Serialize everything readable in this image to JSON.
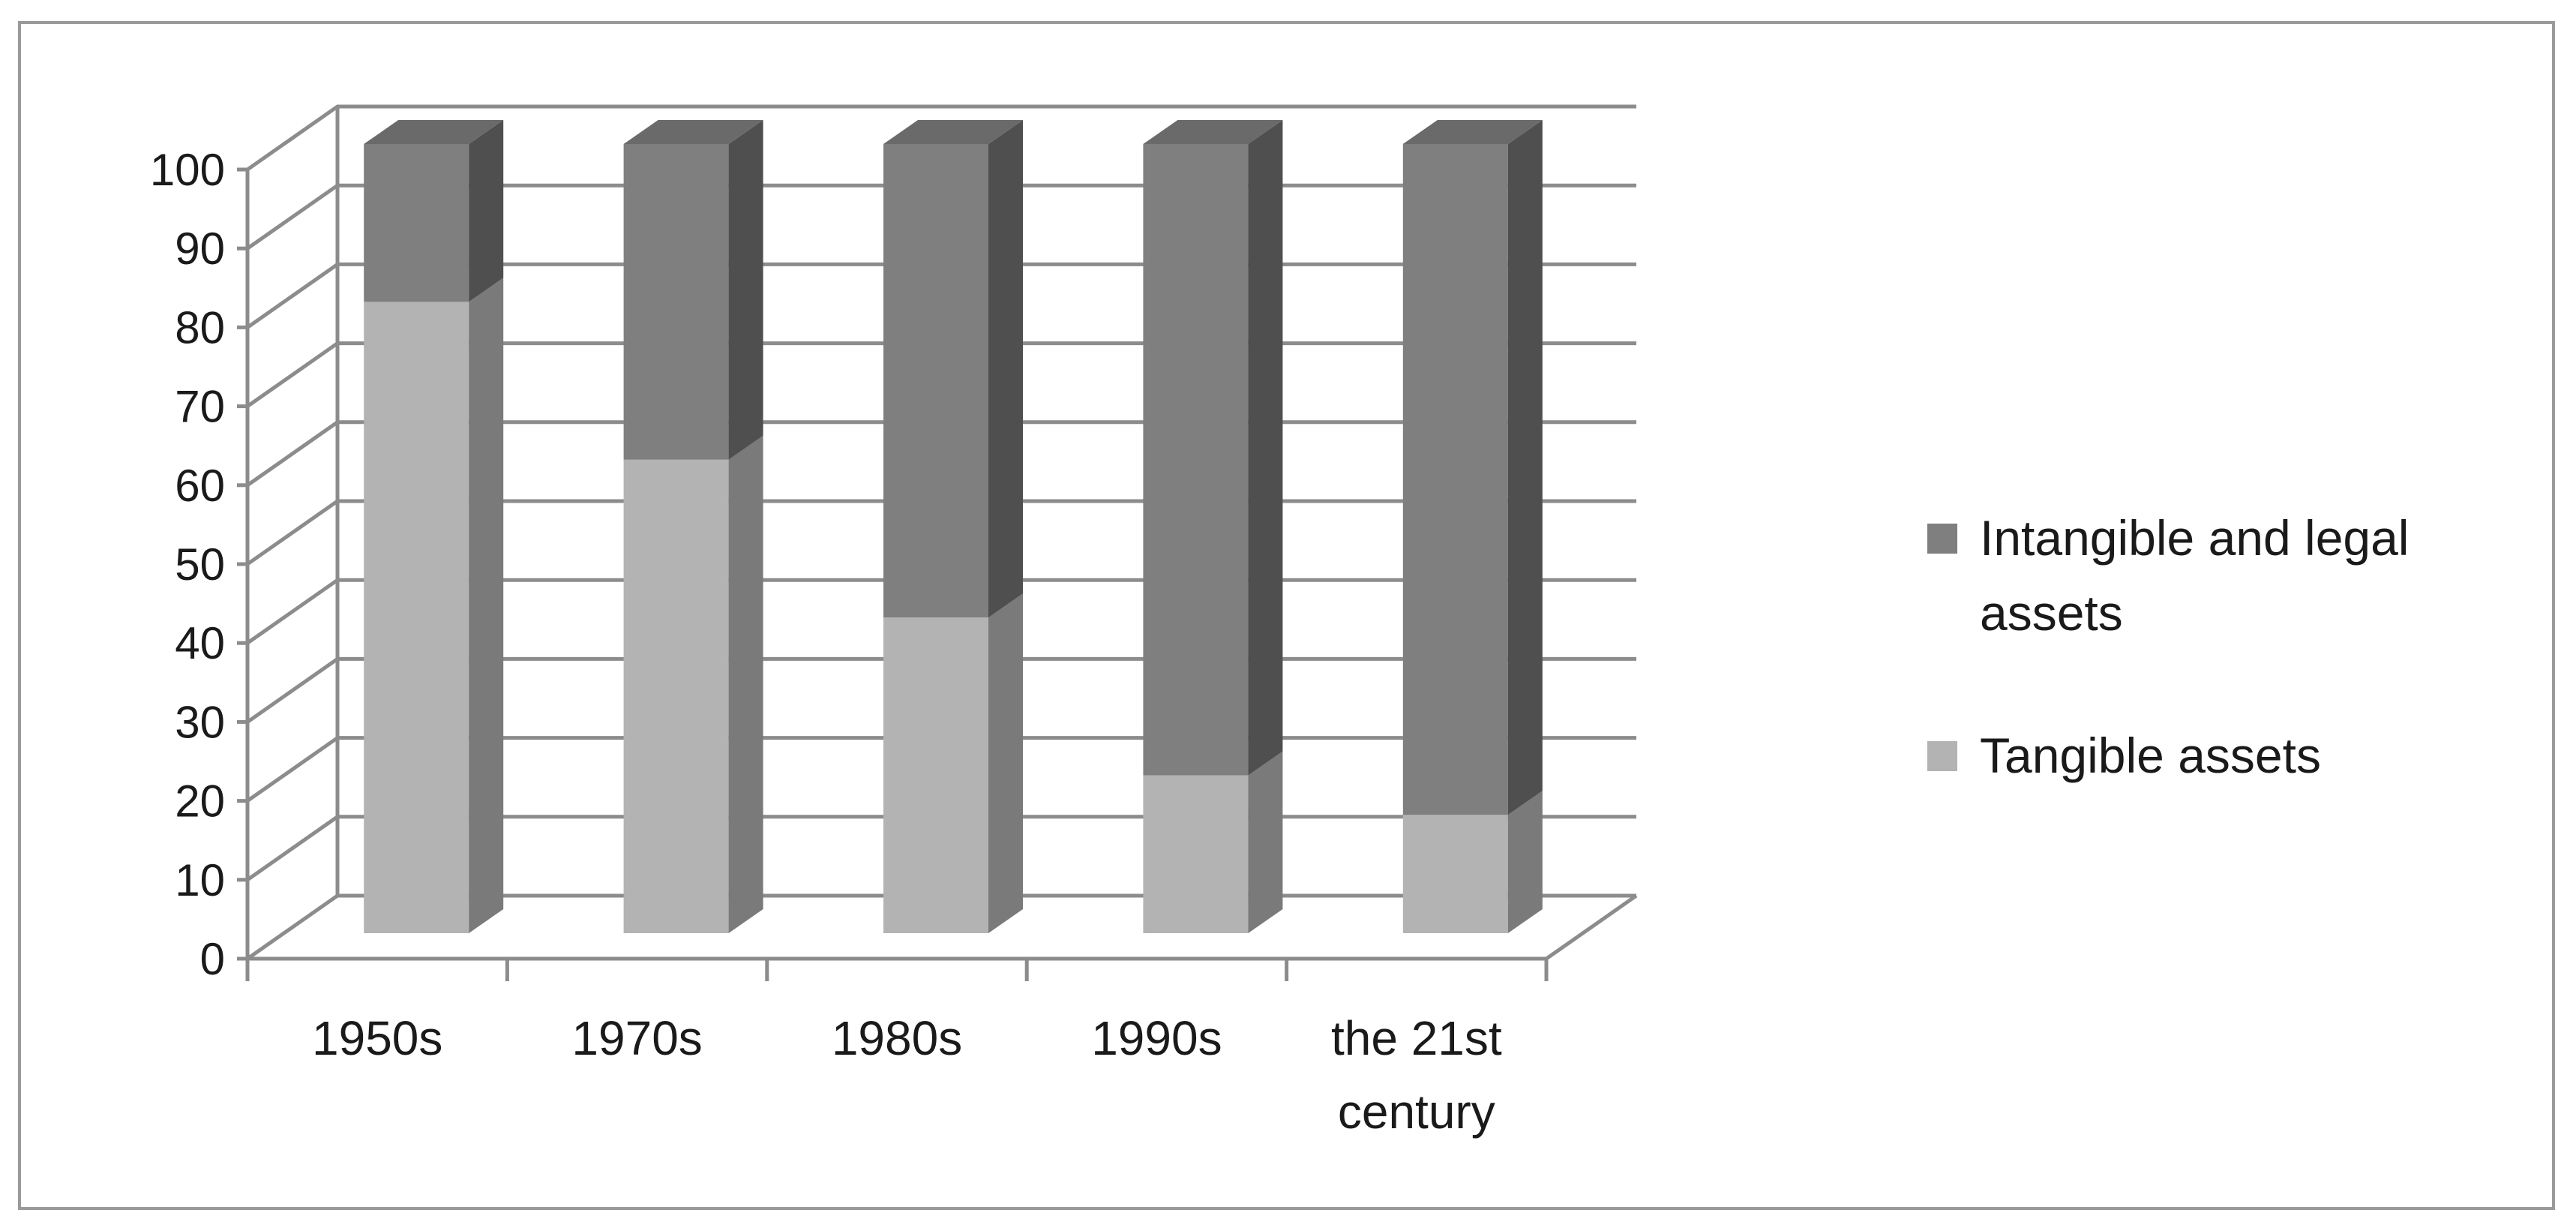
{
  "chart_data": {
    "type": "bar",
    "stacked": true,
    "three_d": true,
    "title": "",
    "xlabel": "",
    "ylabel": "",
    "ylim": [
      0,
      100
    ],
    "yticks": [
      0,
      10,
      20,
      30,
      40,
      50,
      60,
      70,
      80,
      90,
      100
    ],
    "grid": true,
    "legend_position": "right",
    "categories": [
      [
        "1950s"
      ],
      [
        "1970s"
      ],
      [
        "1980s"
      ],
      [
        "1990s"
      ],
      [
        "the 21st",
        "century"
      ]
    ],
    "series": [
      {
        "name": "Tangible assets",
        "values": [
          80,
          60,
          40,
          20,
          15
        ],
        "color": "#b3b3b3"
      },
      {
        "name": "Intangible and legal assets",
        "values": [
          20,
          40,
          60,
          80,
          85
        ],
        "color": "#7f7f7f"
      }
    ],
    "legend": [
      {
        "lines": [
          "Intangible and legal",
          "assets"
        ],
        "color": "#7f7f7f"
      },
      {
        "lines": [
          "Tangible assets"
        ],
        "color": "#b3b3b3"
      }
    ],
    "colors": {
      "grid": "#8c8c8c",
      "tangible_front": "#b3b3b3",
      "tangible_side": "#7a7a7a",
      "tangible_top": "#9e9e9e",
      "intangible_front": "#7f7f7f",
      "intangible_side": "#4f4f4f",
      "intangible_top": "#6a6a6a"
    }
  }
}
